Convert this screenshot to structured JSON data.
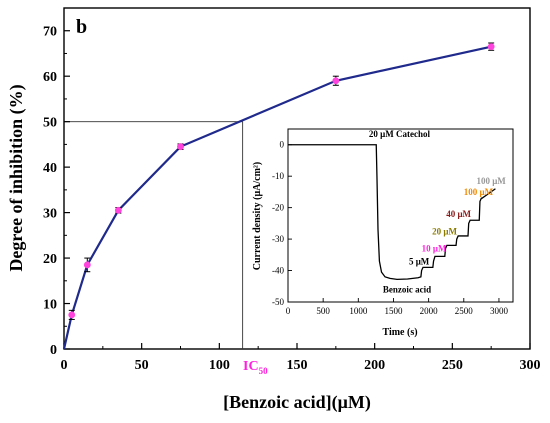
{
  "chart_data": [
    {
      "type": "line",
      "panel_label": "b",
      "xlabel": "[Benzoic acid](μM)",
      "ylabel": "Degree of inhibition (%)",
      "xlim": [
        0,
        300
      ],
      "ylim": [
        0,
        75
      ],
      "xticks": [
        0,
        50,
        100,
        150,
        200,
        250,
        300
      ],
      "yticks": [
        0,
        10,
        20,
        30,
        40,
        50,
        60,
        70
      ],
      "color": "#1f2a8c",
      "marker_color": "#ff44dd",
      "series": [
        {
          "x": [
            0,
            5,
            15,
            35,
            75,
            175,
            275
          ],
          "y": [
            0,
            7.5,
            18.5,
            30.5,
            44.5,
            59.0,
            66.5
          ],
          "err": [
            0,
            1.0,
            1.5,
            0.6,
            0.6,
            1.0,
            0.8
          ]
        }
      ],
      "annotation": {
        "label_main": "IC",
        "label_sub": "50",
        "label_color": "#ff22dd",
        "x": 115,
        "y": 50
      }
    },
    {
      "type": "line",
      "xlabel": "Time (s)",
      "ylabel": "Current density  (μA/cm²)",
      "xlim": [
        0,
        3200
      ],
      "ylim": [
        -50,
        5
      ],
      "xticks": [
        0,
        500,
        1000,
        1500,
        2000,
        2500,
        3000
      ],
      "yticks": [
        0,
        -10,
        -20,
        -30,
        -40,
        -50
      ],
      "series": [
        {
          "x": [
            0,
            1255,
            1265,
            1280,
            1300,
            1330,
            1380,
            1450,
            1550,
            1700,
            1850,
            1890,
            1900,
            1920,
            1930,
            2060,
            2070,
            2090,
            2100,
            2230,
            2240,
            2260,
            2270,
            2390,
            2400,
            2420,
            2430,
            2560,
            2570,
            2590,
            2600,
            2720,
            2730,
            2750,
            2760,
            2950
          ],
          "y": [
            0,
            0,
            -10,
            -27,
            -37,
            -40.5,
            -42,
            -42.5,
            -42.8,
            -42.7,
            -42.3,
            -42,
            -40,
            -39,
            -39,
            -39,
            -37,
            -35.5,
            -35.5,
            -35.5,
            -33,
            -32,
            -32,
            -32,
            -30,
            -29,
            -29,
            -29,
            -25,
            -24,
            -24,
            -24,
            -18,
            -17,
            -17,
            -14
          ]
        }
      ],
      "annotations": [
        {
          "text": "20 μM Catechol",
          "x": 1150,
          "y": 2.5,
          "color": "#000000"
        },
        {
          "text": "100 μM",
          "x": 2680,
          "y": -12.5,
          "color": "#999999"
        },
        {
          "text": "100 μM",
          "x": 2500,
          "y": -16,
          "color": "#f08a00"
        },
        {
          "text": "40 μM",
          "x": 2250,
          "y": -23,
          "color": "#8b1a1a"
        },
        {
          "text": "20 μM",
          "x": 2050,
          "y": -28.5,
          "color": "#8a7a00"
        },
        {
          "text": "10 μM",
          "x": 1900,
          "y": -34,
          "color": "#ff22dd"
        },
        {
          "text": "5 μM",
          "x": 1720,
          "y": -38,
          "color": "#000000"
        },
        {
          "text": "Benzoic acid",
          "x": 1350,
          "y": -47,
          "color": "#000000"
        }
      ]
    }
  ]
}
